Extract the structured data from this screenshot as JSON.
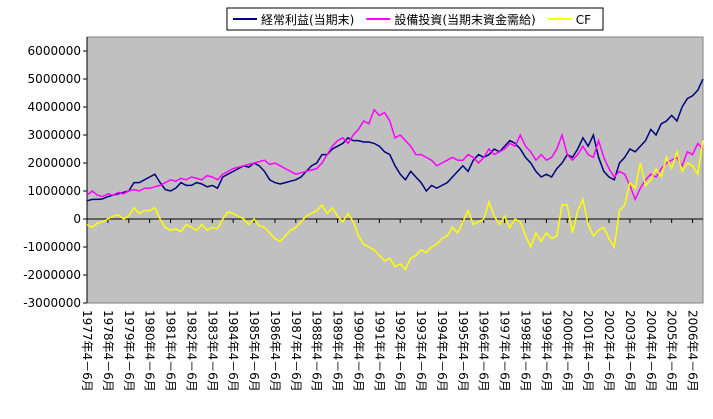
{
  "chart_data": {
    "type": "line",
    "categories": [
      "1977年4－6月",
      null,
      null,
      null,
      "1978年4－6月",
      null,
      null,
      null,
      "1979年4－6月",
      null,
      null,
      null,
      "1980年4－6月",
      null,
      null,
      null,
      "1981年4－6月",
      null,
      null,
      null,
      "1982年4－6月",
      null,
      null,
      null,
      "1983年4－6月",
      null,
      null,
      null,
      "1984年4－6月",
      null,
      null,
      null,
      "1985年4－6月",
      null,
      null,
      null,
      "1986年4－6月",
      null,
      null,
      null,
      "1987年4－6月",
      null,
      null,
      null,
      "1988年4－6月",
      null,
      null,
      null,
      "1989年4－6月",
      null,
      null,
      null,
      "1990年4－6月",
      null,
      null,
      null,
      "1991年4－6月",
      null,
      null,
      null,
      "1992年4－6月",
      null,
      null,
      null,
      "1993年4－6月",
      null,
      null,
      null,
      "1994年4－6月",
      null,
      null,
      null,
      "1995年4－6月",
      null,
      null,
      null,
      "1996年4－6月",
      null,
      null,
      null,
      "1997年4－6月",
      null,
      null,
      null,
      "1998年4－6月",
      null,
      null,
      null,
      "1999年4－6月",
      null,
      null,
      null,
      "2000年4－6月",
      null,
      null,
      null,
      "2001年4－6月",
      null,
      null,
      null,
      "2002年4－6月",
      null,
      null,
      null,
      "2003年4－6月",
      null,
      null,
      null,
      "2004年4－6月",
      null,
      null,
      null,
      "2005年4－6月",
      null,
      null,
      null,
      "2006年4－6月",
      null,
      null
    ],
    "series": [
      {
        "name": "経常利益(当期末)",
        "color": "#000080",
        "values": [
          650000,
          700000,
          700000,
          720000,
          800000,
          850000,
          900000,
          950000,
          1000000,
          1300000,
          1300000,
          1400000,
          1500000,
          1600000,
          1300000,
          1050000,
          1000000,
          1100000,
          1300000,
          1200000,
          1200000,
          1300000,
          1250000,
          1150000,
          1200000,
          1100000,
          1500000,
          1600000,
          1700000,
          1800000,
          1900000,
          1850000,
          2000000,
          1900000,
          1700000,
          1400000,
          1300000,
          1250000,
          1300000,
          1350000,
          1400000,
          1500000,
          1700000,
          1900000,
          2000000,
          2300000,
          2300000,
          2500000,
          2600000,
          2700000,
          2900000,
          2800000,
          2800000,
          2750000,
          2750000,
          2700000,
          2600000,
          2400000,
          2300000,
          1900000,
          1600000,
          1400000,
          1700000,
          1500000,
          1300000,
          1000000,
          1200000,
          1100000,
          1200000,
          1300000,
          1500000,
          1700000,
          1900000,
          1700000,
          2100000,
          2300000,
          2200000,
          2300000,
          2500000,
          2400000,
          2600000,
          2800000,
          2700000,
          2500000,
          2200000,
          2000000,
          1700000,
          1500000,
          1600000,
          1500000,
          1800000,
          2000000,
          2300000,
          2200000,
          2500000,
          2900000,
          2600000,
          3000000,
          2200000,
          1700000,
          1500000,
          1400000,
          2000000,
          2200000,
          2500000,
          2400000,
          2600000,
          2800000,
          3200000,
          3000000,
          3400000,
          3500000,
          3700000,
          3500000,
          4000000,
          4300000,
          4400000,
          4600000,
          5000000
        ]
      },
      {
        "name": "設備投資(当期末資金需給)",
        "color": "#ff00ff",
        "values": [
          850000,
          1000000,
          850000,
          800000,
          900000,
          850000,
          950000,
          900000,
          1000000,
          1050000,
          1000000,
          1100000,
          1100000,
          1150000,
          1200000,
          1300000,
          1400000,
          1350000,
          1450000,
          1400000,
          1500000,
          1450000,
          1400000,
          1550000,
          1500000,
          1400000,
          1600000,
          1700000,
          1800000,
          1850000,
          1900000,
          1950000,
          2000000,
          2050000,
          2100000,
          1950000,
          2000000,
          1900000,
          1800000,
          1700000,
          1600000,
          1650000,
          1700000,
          1750000,
          1800000,
          2000000,
          2300000,
          2600000,
          2800000,
          2900000,
          2700000,
          3000000,
          3200000,
          3500000,
          3400000,
          3900000,
          3700000,
          3800000,
          3500000,
          2900000,
          3000000,
          2800000,
          2600000,
          2300000,
          2300000,
          2200000,
          2100000,
          1900000,
          2000000,
          2100000,
          2200000,
          2100000,
          2100000,
          2300000,
          2200000,
          2000000,
          2200000,
          2500000,
          2300000,
          2400000,
          2500000,
          2700000,
          2600000,
          3000000,
          2600000,
          2400000,
          2100000,
          2300000,
          2100000,
          2200000,
          2500000,
          3000000,
          2300000,
          2100000,
          2300000,
          2600000,
          2300000,
          2200000,
          2800000,
          2200000,
          1800000,
          1500000,
          1700000,
          1600000,
          1200000,
          700000,
          1100000,
          1400000,
          1600000,
          1500000,
          1800000,
          2000000,
          2100000,
          2200000,
          1900000,
          2400000,
          2300000,
          2700000,
          2500000
        ]
      },
      {
        "name": "CF",
        "color": "#ffff00",
        "values": [
          -200000,
          -300000,
          -150000,
          -100000,
          0,
          100000,
          150000,
          0,
          100000,
          400000,
          200000,
          300000,
          300000,
          400000,
          0,
          -300000,
          -400000,
          -350000,
          -450000,
          -200000,
          -300000,
          -400000,
          -200000,
          -400000,
          -300000,
          -350000,
          0,
          250000,
          200000,
          100000,
          0,
          -200000,
          0,
          -250000,
          -300000,
          -500000,
          -700000,
          -800000,
          -600000,
          -400000,
          -300000,
          -100000,
          100000,
          200000,
          300000,
          500000,
          200000,
          400000,
          100000,
          -100000,
          200000,
          -100000,
          -600000,
          -900000,
          -1000000,
          -1100000,
          -1300000,
          -1500000,
          -1400000,
          -1700000,
          -1600000,
          -1800000,
          -1400000,
          -1300000,
          -1100000,
          -1200000,
          -1000000,
          -900000,
          -700000,
          -600000,
          -300000,
          -500000,
          -100000,
          300000,
          -200000,
          -100000,
          0,
          600000,
          100000,
          -200000,
          100000,
          -300000,
          0,
          -100000,
          -600000,
          -1000000,
          -500000,
          -800000,
          -500000,
          -700000,
          -600000,
          500000,
          500000,
          -500000,
          300000,
          700000,
          -200000,
          -600000,
          -400000,
          -300000,
          -700000,
          -1000000,
          300000,
          500000,
          1300000,
          1100000,
          2000000,
          1200000,
          1400000,
          1800000,
          1500000,
          2200000,
          1800000,
          2400000,
          1700000,
          2000000,
          1900000,
          1600000,
          2800000
        ]
      }
    ],
    "ylim": [
      -3000000,
      6000000
    ],
    "yticks": [
      -3000000,
      -2000000,
      -1000000,
      0,
      1000000,
      2000000,
      3000000,
      4000000,
      5000000,
      6000000
    ],
    "grid": false,
    "plot_background": "#c0c0c0",
    "legend": "top"
  }
}
